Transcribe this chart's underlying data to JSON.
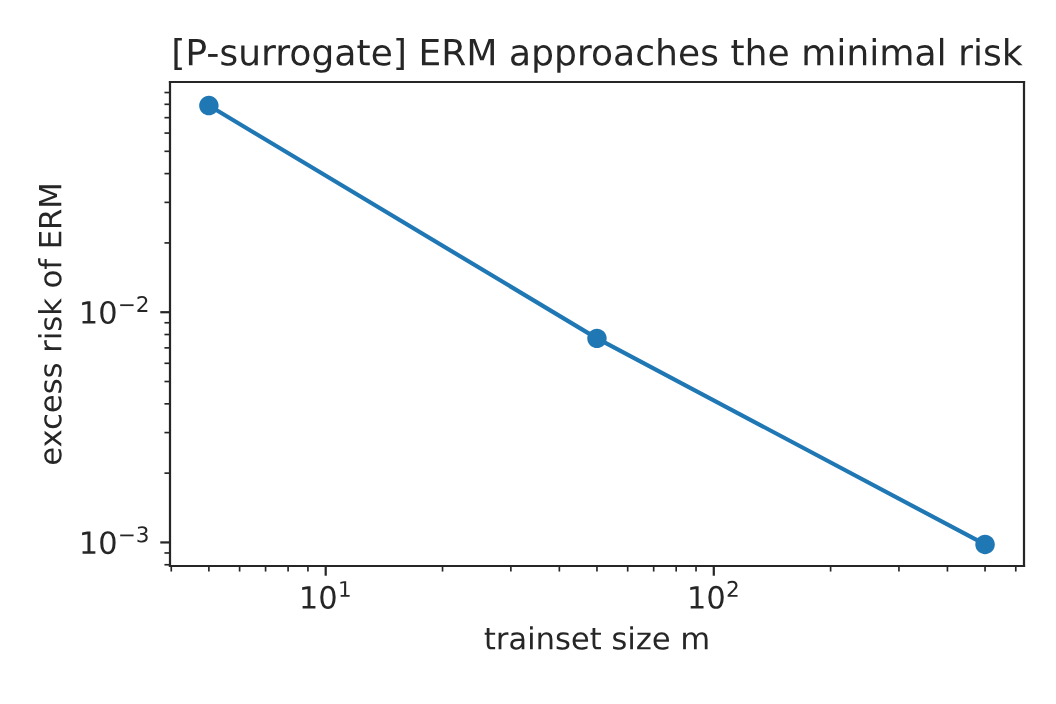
{
  "chart_data": {
    "type": "line",
    "title": "[P-surrogate] ERM approaches the minimal risk",
    "xlabel": "trainset size m",
    "ylabel": "excess risk of ERM",
    "x": [
      5,
      50,
      500
    ],
    "series": [
      {
        "color": "#1f77b4",
        "values": [
          0.079,
          0.0077,
          0.00098
        ]
      }
    ],
    "log": "xy",
    "marker": "circle",
    "line_style": "solid",
    "grid": false,
    "legend": false,
    "xlim": [
      3.97,
      630
    ],
    "ylim": [
      0.00079,
      0.1
    ],
    "xticks": [
      {
        "value": 10,
        "label": "10$^{1}$"
      },
      {
        "value": 100,
        "label": "10$^{2}$"
      }
    ],
    "yticks": [
      {
        "value": 0.001,
        "label": "10$^{−3}$"
      },
      {
        "value": 0.01,
        "label": "10$^{−2}$"
      }
    ]
  }
}
